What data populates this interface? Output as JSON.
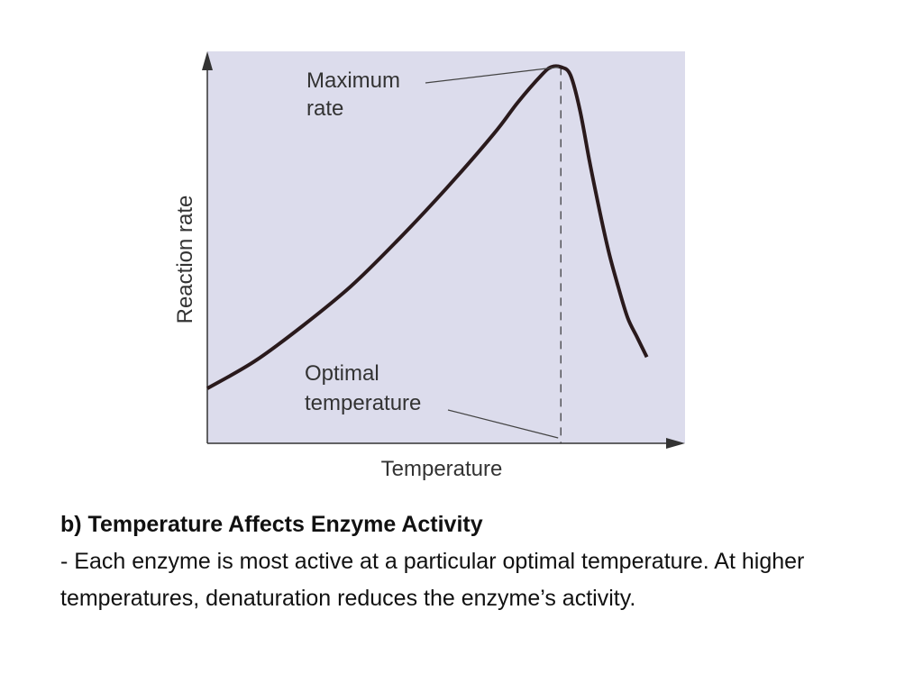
{
  "slide": {
    "heading": "b) Temperature Affects Enzyme Activity",
    "body": "- Each enzyme is most active at a particular optimal temperature. At higher temperatures, denaturation reduces the enzyme’s activity."
  },
  "chart_data": {
    "type": "line",
    "xlabel": "Temperature",
    "ylabel": "Reaction rate",
    "x_range": [
      0,
      100
    ],
    "y_range": [
      0,
      100
    ],
    "grid": false,
    "background_color": "#dcdcec",
    "line_color": "#2a1a1c",
    "series": [
      {
        "x": [
          0,
          10,
          20,
          30,
          40,
          50,
          60,
          65,
          70,
          72,
          74,
          76,
          78,
          80,
          82,
          84,
          86,
          88,
          90,
          92
        ],
        "y": [
          14,
          21,
          30,
          40,
          52,
          65,
          79,
          87,
          94,
          96,
          96,
          94,
          85,
          72,
          60,
          49,
          40,
          32,
          27,
          22
        ]
      }
    ],
    "annotations": [
      {
        "text_lines": [
          "Maximum",
          "rate"
        ],
        "points_to": "peak"
      },
      {
        "text_lines": [
          "Optimal",
          "temperature"
        ],
        "points_to": "optimal-temperature-on-x-axis"
      }
    ],
    "optimal_x": 74
  }
}
